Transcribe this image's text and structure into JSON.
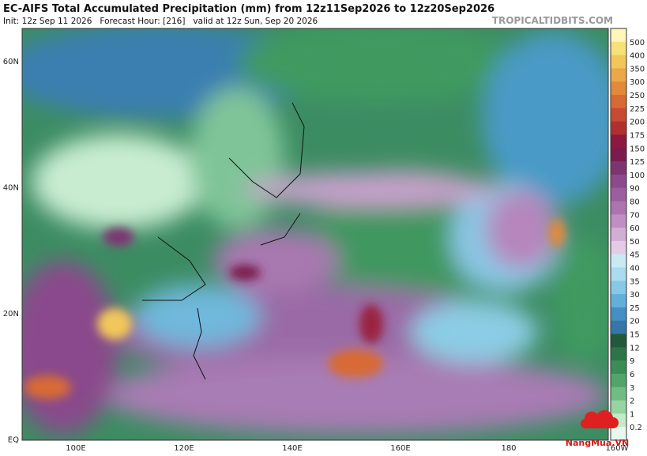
{
  "header": {
    "title": "EC-AIFS Total Accumulated Precipitation (mm) from 12z11Sep2026 to 12z20Sep2026",
    "subtitle": "Init: 12z Sep 11 2026   Forecast Hour: [216]   valid at 12z Sun, Sep 20 2026",
    "site": "TROPICALTIDBITS.COM"
  },
  "map": {
    "lat_labels": [
      "60N",
      "40N",
      "20N",
      "EQ"
    ],
    "lon_labels": [
      "100E",
      "120E",
      "140E",
      "160E",
      "180",
      "160W"
    ]
  },
  "colorbar": {
    "levels": [
      500,
      400,
      350,
      300,
      250,
      225,
      200,
      175,
      150,
      125,
      100,
      90,
      80,
      70,
      60,
      50,
      45,
      40,
      35,
      30,
      25,
      20,
      15,
      12,
      9,
      6,
      3,
      2,
      1,
      0.2
    ],
    "colors": [
      "#fff6b8",
      "#f8e07a",
      "#f2c75a",
      "#eaa848",
      "#e28a3a",
      "#d86a34",
      "#c84a32",
      "#b03030",
      "#8e1840",
      "#7a1c4e",
      "#7c3472",
      "#8c4a8c",
      "#9c5e9e",
      "#ad74b0",
      "#bf8ec2",
      "#d2aed4",
      "#e4cce6",
      "#c8eaf2",
      "#a8dcee",
      "#86c8e6",
      "#62b0da",
      "#448fc4",
      "#3676a8",
      "#22593a",
      "#2e7448",
      "#3c8c58",
      "#52a46a",
      "#70bc82",
      "#96d4a2",
      "#c2ecc8",
      "#e8f8ec"
    ]
  },
  "watermark": "NangMua.VN"
}
